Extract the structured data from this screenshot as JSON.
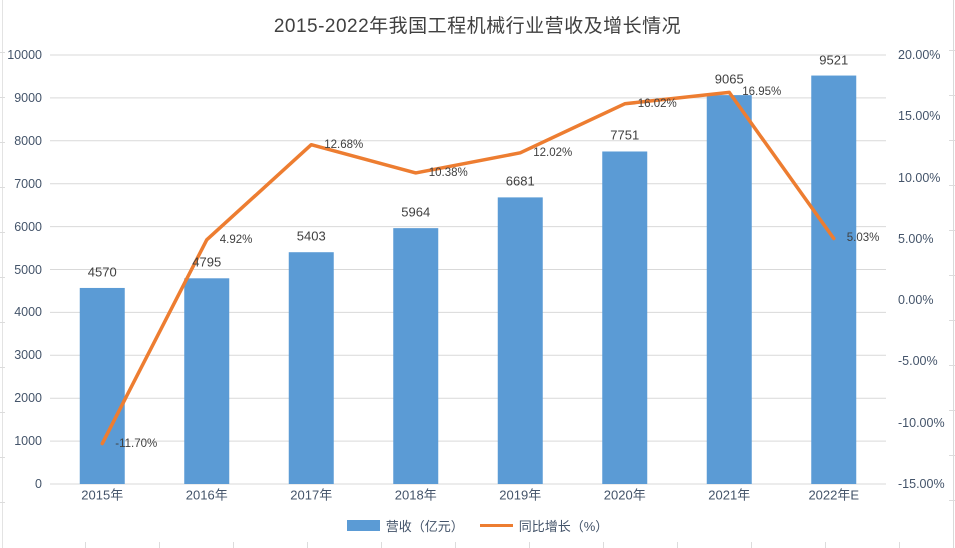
{
  "header": {
    "title": "2015-2022年我国工程机械行业营收及增长情况"
  },
  "legend": {
    "items": [
      {
        "label": "营收（亿元）",
        "kind": "bar"
      },
      {
        "label": "同比增长（%）",
        "kind": "line"
      }
    ]
  },
  "chart_data": {
    "type": "bar",
    "combo": [
      "bar",
      "line"
    ],
    "title": "2015-2022年我国工程机械行业营收及增长情况",
    "categories": [
      "2015年",
      "2016年",
      "2017年",
      "2018年",
      "2019年",
      "2020年",
      "2021年",
      "2022年E"
    ],
    "series": [
      {
        "name": "营收（亿元）",
        "kind": "bar",
        "axis": "left",
        "color": "#5B9BD5",
        "values": [
          4570,
          4795,
          5403,
          5964,
          6681,
          7751,
          9065,
          9521
        ],
        "value_labels": [
          "4570",
          "4795",
          "5403",
          "5964",
          "6681",
          "7751",
          "9065",
          "9521"
        ]
      },
      {
        "name": "同比增长（%）",
        "kind": "line",
        "axis": "right",
        "color": "#ED7D31",
        "values": [
          -11.7,
          4.92,
          12.68,
          10.38,
          12.02,
          16.02,
          16.95,
          5.03
        ],
        "value_labels": [
          "-11.70%",
          "4.92%",
          "12.68%",
          "10.38%",
          "12.02%",
          "16.02%",
          "16.95%",
          "5.03%"
        ]
      }
    ],
    "left_axis": {
      "min": 0,
      "max": 10000,
      "step": 1000,
      "tick_labels": [
        "0",
        "1000",
        "2000",
        "3000",
        "4000",
        "5000",
        "6000",
        "7000",
        "8000",
        "9000",
        "10000"
      ]
    },
    "right_axis": {
      "min": -15,
      "max": 20,
      "step": 5,
      "tick_labels": [
        "-15.00%",
        "-10.00%",
        "-5.00%",
        "0.00%",
        "5.00%",
        "10.00%",
        "15.00%",
        "20.00%"
      ]
    },
    "grid": true,
    "legend_position": "bottom",
    "styles": {
      "grid_color": "#D9D9D9",
      "axis_line_color": "#D9D9D9",
      "tick_color": "#44546A",
      "data_label_color": "#404040",
      "title_color": "#404040",
      "background": "#FFFFFF"
    }
  }
}
